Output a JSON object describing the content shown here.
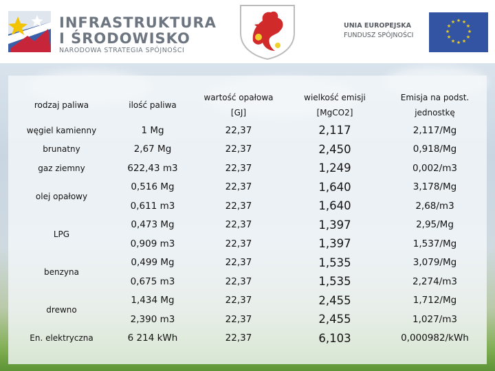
{
  "header": {
    "logo_line1": "INFRASTRUKTURA",
    "logo_line2": "I ŚRODOWISKO",
    "logo_line3": "NARODOWA STRATEGIA SPÓJNOŚCI",
    "eu_line1": "UNIA EUROPEJSKA",
    "eu_line2": "FUNDUSZ SPÓJNOŚCI"
  },
  "table": {
    "headers": {
      "fuel": "rodzaj paliwa",
      "quantity": "ilość paliwa",
      "calorific_l1": "wartość opałowa",
      "calorific_l2": "[GJ]",
      "emission_l1": "wielkość emisji",
      "emission_l2": "[MgCO2]",
      "unit_l1": "Emisja na podst.",
      "unit_l2": "jednostkę"
    },
    "rows": [
      {
        "fuel": "węgiel kamienny",
        "quantity": "1 Mg",
        "calorific": "22,37",
        "emission": "2,117",
        "unit": "2,117/Mg"
      },
      {
        "fuel": "brunatny",
        "quantity": "2,67 Mg",
        "calorific": "22,37",
        "emission": "2,450",
        "unit": "0,918/Mg"
      },
      {
        "fuel": "gaz ziemny",
        "quantity": "622,43 m3",
        "calorific": "22,37",
        "emission": "1,249",
        "unit": "0,002/m3"
      },
      {
        "fuel": "olej opałowy",
        "quantity": "0,516 Mg",
        "calorific": "22,37",
        "emission": "1,640",
        "unit": "3,178/Mg"
      },
      {
        "quantity": "0,611 m3",
        "calorific": "22,37",
        "emission": "1,640",
        "unit": "2,68/m3"
      },
      {
        "fuel": "LPG",
        "quantity": "0,473 Mg",
        "calorific": "22,37",
        "emission": "1,397",
        "unit": "2,95/Mg"
      },
      {
        "quantity": "0,909 m3",
        "calorific": "22,37",
        "emission": "1,397",
        "unit": "1,537/Mg"
      },
      {
        "fuel": "benzyna",
        "quantity": "0,499 Mg",
        "calorific": "22,37",
        "emission": "1,535",
        "unit": "3,079/Mg"
      },
      {
        "quantity": "0,675 m3",
        "calorific": "22,37",
        "emission": "1,535",
        "unit": "2,274/m3"
      },
      {
        "fuel": "drewno",
        "quantity": "1,434 Mg",
        "calorific": "22,37",
        "emission": "2,455",
        "unit": "1,712/Mg"
      },
      {
        "quantity": "2,390 m3",
        "calorific": "22,37",
        "emission": "2,455",
        "unit": "1,027/m3"
      },
      {
        "fuel": "En. elektryczna",
        "quantity": "6 214 kWh",
        "calorific": "22,37",
        "emission": "6,103",
        "unit": "0,000982/kWh"
      }
    ]
  }
}
